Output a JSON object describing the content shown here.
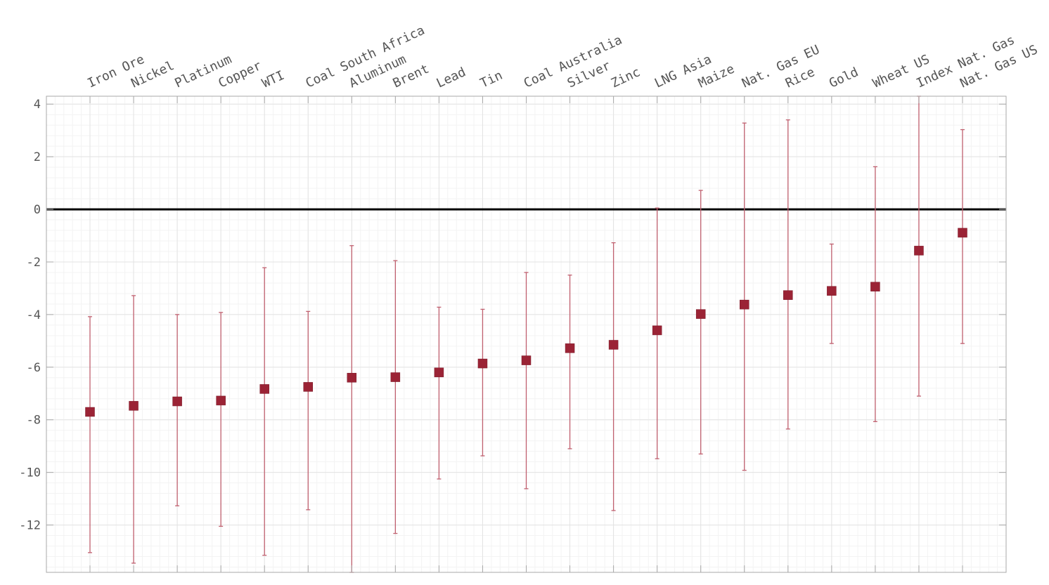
{
  "chart_data": {
    "type": "scatter",
    "title": "",
    "xlabel": "",
    "ylabel": "",
    "categories": [
      "Iron Ore",
      "Nickel",
      "Platinum",
      "Copper",
      "WTI",
      "Coal South Africa",
      "Aluminum",
      "Brent",
      "Lead",
      "Tin",
      "Coal Australia",
      "Silver",
      "Zinc",
      "LNG Asia",
      "Maize",
      "Nat. Gas EU",
      "Rice",
      "Gold",
      "Wheat US",
      "Index Nat. Gas",
      "Nat. Gas US"
    ],
    "values": [
      -7.7,
      -7.47,
      -7.3,
      -7.27,
      -6.83,
      -6.75,
      -6.4,
      -6.38,
      -6.2,
      -5.86,
      -5.74,
      -5.28,
      -5.15,
      -4.6,
      -3.98,
      -3.62,
      -3.26,
      -3.1,
      -2.94,
      -1.57,
      -0.89
    ],
    "lower": [
      -13.05,
      -13.45,
      -11.27,
      -12.05,
      -13.15,
      -11.42,
      -13.8,
      -12.32,
      -10.25,
      -9.37,
      -10.62,
      -9.1,
      -11.45,
      -9.48,
      -9.3,
      -9.92,
      -8.35,
      -5.1,
      -8.07,
      -7.1,
      -5.1
    ],
    "upper": [
      -4.08,
      -3.28,
      -4.0,
      -3.92,
      -2.22,
      -3.88,
      -1.38,
      -1.95,
      -3.72,
      -3.8,
      -2.4,
      -2.5,
      -1.27,
      0.05,
      0.72,
      3.28,
      3.4,
      -1.32,
      1.62,
      4.3,
      3.03
    ],
    "ylim": [
      -13.8,
      4.3
    ],
    "yticks": [
      4,
      2,
      0,
      -2,
      -4,
      -6,
      -8,
      -10,
      -12
    ],
    "reference_line": 0,
    "grid": true,
    "colors": {
      "marker": "#9b2335",
      "whisker": "#c0606f",
      "zero_line": "#000000",
      "axis": "#a8a8a8",
      "grid_major": "#e3e3e3",
      "grid_minor": "#f3f3f3",
      "text": "#555555"
    }
  }
}
